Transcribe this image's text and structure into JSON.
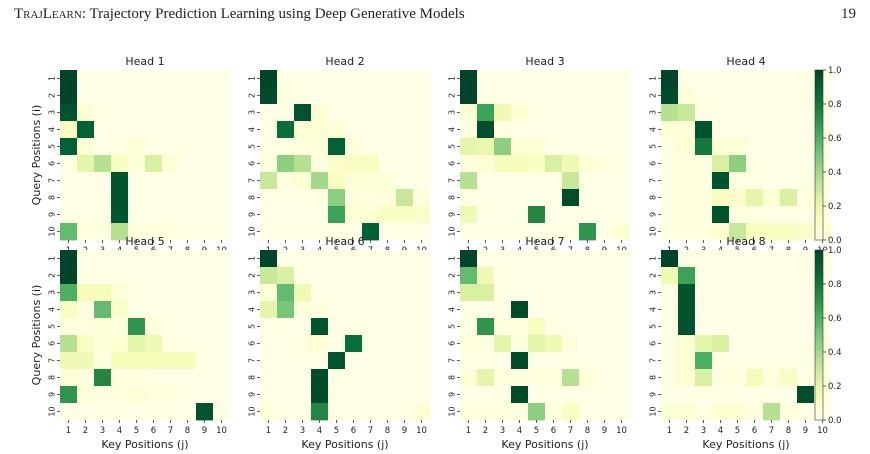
{
  "header": {
    "title_smallcaps": "TrajLearn",
    "title_rest": ": Trajectory Prediction Learning using Deep Generative Models",
    "page_number": "19"
  },
  "chart_data": {
    "type": "heatmap",
    "ylabel": "Query Positions (i)",
    "xlabel": "Key Positions (j)",
    "x_ticks": [
      "1",
      "2",
      "3",
      "4",
      "5",
      "6",
      "7",
      "8",
      "9",
      "10"
    ],
    "y_ticks": [
      "1",
      "2",
      "3",
      "4",
      "5",
      "6",
      "7",
      "8",
      "9",
      "10"
    ],
    "colorbar": {
      "min": 0.0,
      "max": 1.0,
      "ticks": [
        "0.0",
        "0.2",
        "0.4",
        "0.6",
        "0.8",
        "1.0"
      ],
      "colormap": "YlGn"
    },
    "colors": {
      "low": "#ffffe5",
      "high": "#004529"
    },
    "panels": [
      {
        "title": "Head 1",
        "values": [
          [
            1,
            0,
            0,
            0,
            0,
            0,
            0,
            0,
            0,
            0
          ],
          [
            1,
            0,
            0,
            0,
            0,
            0,
            0,
            0,
            0,
            0
          ],
          [
            0.95,
            0.05,
            0,
            0,
            0,
            0,
            0,
            0,
            0,
            0
          ],
          [
            0.1,
            0.9,
            0,
            0,
            0,
            0,
            0,
            0,
            0,
            0
          ],
          [
            0.9,
            0.05,
            0,
            0,
            0.05,
            0,
            0,
            0,
            0,
            0
          ],
          [
            0.02,
            0.2,
            0.35,
            0.1,
            0.03,
            0.25,
            0.05,
            0,
            0,
            0
          ],
          [
            0,
            0,
            0,
            0.95,
            0,
            0,
            0,
            0,
            0,
            0
          ],
          [
            0,
            0,
            0,
            0.95,
            0,
            0,
            0,
            0,
            0,
            0
          ],
          [
            0,
            0,
            0,
            0.95,
            0,
            0,
            0,
            0,
            0,
            0
          ],
          [
            0.55,
            0.02,
            0.02,
            0.35,
            0.02,
            0.02,
            0.02,
            0,
            0,
            0
          ]
        ]
      },
      {
        "title": "Head 2",
        "values": [
          [
            1,
            0,
            0,
            0,
            0,
            0,
            0,
            0,
            0,
            0
          ],
          [
            0.98,
            0.02,
            0,
            0,
            0,
            0,
            0,
            0,
            0,
            0
          ],
          [
            0,
            0,
            0.95,
            0.05,
            0,
            0,
            0,
            0,
            0,
            0
          ],
          [
            0,
            0.85,
            0.05,
            0.05,
            0.05,
            0,
            0,
            0,
            0,
            0
          ],
          [
            0,
            0.02,
            0.02,
            0.03,
            0.9,
            0.03,
            0,
            0,
            0,
            0
          ],
          [
            0.03,
            0.45,
            0.35,
            0.02,
            0.08,
            0.1,
            0.1,
            0,
            0,
            0
          ],
          [
            0.3,
            0.02,
            0.05,
            0.4,
            0.1,
            0.05,
            0.05,
            0.03,
            0,
            0
          ],
          [
            0,
            0,
            0,
            0.02,
            0.45,
            0.03,
            0.02,
            0.03,
            0.3,
            0.03
          ],
          [
            0,
            0,
            0,
            0,
            0.65,
            0.05,
            0.05,
            0.1,
            0.1,
            0.08
          ],
          [
            0,
            0,
            0,
            0,
            0,
            0,
            0.9,
            0,
            0,
            0
          ]
        ]
      },
      {
        "title": "Head 3",
        "values": [
          [
            1,
            0,
            0,
            0,
            0,
            0,
            0,
            0,
            0,
            0
          ],
          [
            1,
            0,
            0,
            0,
            0,
            0,
            0,
            0,
            0,
            0
          ],
          [
            0.05,
            0.65,
            0.15,
            0.05,
            0,
            0,
            0,
            0,
            0,
            0
          ],
          [
            0.01,
            0.97,
            0.02,
            0,
            0,
            0,
            0,
            0,
            0,
            0
          ],
          [
            0.2,
            0.18,
            0.45,
            0.05,
            0.05,
            0,
            0,
            0,
            0,
            0
          ],
          [
            0.03,
            0.05,
            0.12,
            0.12,
            0.1,
            0.25,
            0.15,
            0.05,
            0.02,
            0
          ],
          [
            0.35,
            0,
            0,
            0,
            0,
            0,
            0.3,
            0,
            0,
            0
          ],
          [
            0.02,
            0,
            0,
            0,
            0,
            0,
            0.97,
            0,
            0,
            0
          ],
          [
            0.15,
            0,
            0,
            0,
            0.75,
            0,
            0,
            0,
            0,
            0
          ],
          [
            0,
            0,
            0,
            0,
            0,
            0,
            0,
            0.7,
            0,
            0.05
          ]
        ]
      },
      {
        "title": "Head 4",
        "values": [
          [
            1,
            0,
            0,
            0,
            0,
            0,
            0,
            0,
            0,
            0
          ],
          [
            0.97,
            0.03,
            0,
            0,
            0,
            0,
            0,
            0,
            0,
            0
          ],
          [
            0.35,
            0.3,
            0.01,
            0,
            0,
            0,
            0,
            0,
            0,
            0
          ],
          [
            0.05,
            0.05,
            0.95,
            0,
            0,
            0,
            0,
            0,
            0,
            0
          ],
          [
            0.02,
            0.05,
            0.8,
            0.05,
            0.05,
            0,
            0,
            0,
            0,
            0
          ],
          [
            0.02,
            0.02,
            0.02,
            0.25,
            0.45,
            0,
            0,
            0,
            0,
            0
          ],
          [
            0.02,
            0.02,
            0.02,
            0.95,
            0.02,
            0.02,
            0,
            0,
            0,
            0
          ],
          [
            0.02,
            0.02,
            0.02,
            0.1,
            0.08,
            0.2,
            0.05,
            0.25,
            0.02,
            0
          ],
          [
            0.02,
            0.02,
            0.02,
            0.95,
            0.02,
            0.02,
            0,
            0,
            0,
            0
          ],
          [
            0.02,
            0.02,
            0.02,
            0.05,
            0.3,
            0.1,
            0.1,
            0.1,
            0.08,
            0.05
          ]
        ]
      },
      {
        "title": "Head 5",
        "values": [
          [
            1,
            0,
            0,
            0,
            0,
            0,
            0,
            0,
            0,
            0
          ],
          [
            1,
            0,
            0,
            0,
            0,
            0,
            0,
            0,
            0,
            0
          ],
          [
            0.6,
            0.12,
            0.12,
            0.05,
            0,
            0,
            0,
            0,
            0,
            0
          ],
          [
            0.1,
            0.02,
            0.55,
            0.08,
            0,
            0,
            0,
            0,
            0,
            0
          ],
          [
            0.02,
            0.02,
            0.05,
            0.02,
            0.7,
            0.03,
            0,
            0,
            0,
            0
          ],
          [
            0.35,
            0.1,
            0.03,
            0.05,
            0.2,
            0.15,
            0.02,
            0,
            0,
            0
          ],
          [
            0.15,
            0.15,
            0.02,
            0.12,
            0.12,
            0.12,
            0.12,
            0.12,
            0,
            0
          ],
          [
            0.05,
            0.02,
            0.75,
            0.02,
            0.02,
            0,
            0,
            0,
            0,
            0
          ],
          [
            0.7,
            0.03,
            0.02,
            0.02,
            0.05,
            0.02,
            0.02,
            0,
            0,
            0
          ],
          [
            0,
            0,
            0,
            0,
            0,
            0,
            0,
            0,
            0.95,
            0
          ]
        ]
      },
      {
        "title": "Head 6",
        "values": [
          [
            1,
            0,
            0,
            0,
            0,
            0,
            0,
            0,
            0,
            0
          ],
          [
            0.3,
            0.25,
            0,
            0,
            0,
            0,
            0,
            0,
            0,
            0
          ],
          [
            0.05,
            0.55,
            0.15,
            0,
            0,
            0,
            0,
            0,
            0,
            0
          ],
          [
            0.2,
            0.5,
            0.03,
            0.02,
            0,
            0,
            0,
            0,
            0,
            0
          ],
          [
            0,
            0,
            0,
            0.95,
            0,
            0,
            0,
            0,
            0,
            0
          ],
          [
            0,
            0,
            0.02,
            0.05,
            0,
            0.85,
            0,
            0,
            0,
            0
          ],
          [
            0,
            0,
            0,
            0,
            0.95,
            0,
            0,
            0,
            0,
            0
          ],
          [
            0,
            0,
            0,
            0.97,
            0,
            0,
            0,
            0,
            0,
            0
          ],
          [
            0,
            0,
            0,
            0.97,
            0,
            0,
            0,
            0,
            0,
            0
          ],
          [
            0.03,
            0,
            0,
            0.75,
            0,
            0,
            0,
            0,
            0,
            0.05
          ]
        ]
      },
      {
        "title": "Head 7",
        "values": [
          [
            1,
            0,
            0,
            0,
            0,
            0,
            0,
            0,
            0,
            0
          ],
          [
            0.55,
            0.15,
            0,
            0,
            0,
            0,
            0,
            0,
            0,
            0
          ],
          [
            0.25,
            0.25,
            0,
            0,
            0,
            0,
            0,
            0,
            0,
            0
          ],
          [
            0,
            0,
            0,
            0.97,
            0,
            0,
            0,
            0,
            0,
            0
          ],
          [
            0.02,
            0.7,
            0.02,
            0.02,
            0.1,
            0,
            0,
            0,
            0,
            0
          ],
          [
            0.02,
            0.02,
            0.2,
            0.02,
            0.2,
            0.15,
            0.03,
            0,
            0,
            0
          ],
          [
            0,
            0,
            0,
            0.97,
            0,
            0,
            0,
            0,
            0,
            0
          ],
          [
            0.05,
            0.2,
            0.02,
            0.02,
            0.02,
            0.02,
            0.35,
            0.05,
            0,
            0
          ],
          [
            0,
            0,
            0,
            0.97,
            0,
            0,
            0,
            0,
            0,
            0
          ],
          [
            0.02,
            0.02,
            0.02,
            0.02,
            0.45,
            0.02,
            0.1,
            0,
            0,
            0
          ]
        ]
      },
      {
        "title": "Head 8",
        "values": [
          [
            1,
            0,
            0,
            0,
            0,
            0,
            0,
            0,
            0,
            0
          ],
          [
            0.15,
            0.65,
            0,
            0,
            0,
            0,
            0,
            0,
            0,
            0
          ],
          [
            0.02,
            0.95,
            0,
            0,
            0,
            0,
            0,
            0,
            0,
            0
          ],
          [
            0.02,
            0.95,
            0,
            0,
            0,
            0,
            0,
            0,
            0,
            0
          ],
          [
            0.02,
            0.95,
            0,
            0,
            0,
            0,
            0,
            0,
            0,
            0
          ],
          [
            0.02,
            0.05,
            0.2,
            0.25,
            0,
            0,
            0,
            0,
            0,
            0
          ],
          [
            0.02,
            0.05,
            0.6,
            0.02,
            0,
            0,
            0,
            0,
            0,
            0
          ],
          [
            0.02,
            0.05,
            0.25,
            0.02,
            0.02,
            0.12,
            0.02,
            0.1,
            0,
            0
          ],
          [
            0,
            0,
            0,
            0,
            0,
            0,
            0,
            0,
            0.97,
            0
          ],
          [
            0.05,
            0.05,
            0.02,
            0.05,
            0.05,
            0.02,
            0.35,
            0.02,
            0,
            0
          ]
        ]
      }
    ]
  }
}
